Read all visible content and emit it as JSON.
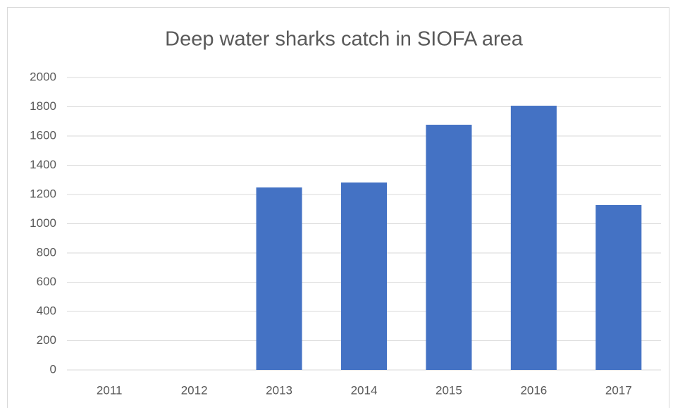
{
  "chart_data": {
    "type": "bar",
    "title": "Deep water sharks catch in SIOFA area",
    "categories": [
      "2011",
      "2012",
      "2013",
      "2014",
      "2015",
      "2016",
      "2017"
    ],
    "values": [
      0,
      0,
      1248,
      1282,
      1677,
      1807,
      1128
    ],
    "color": "#4472c4",
    "ylim": [
      0,
      2000
    ],
    "yticks": [
      0,
      200,
      400,
      600,
      800,
      1000,
      1200,
      1400,
      1600,
      1800,
      2000
    ],
    "grid": true
  }
}
